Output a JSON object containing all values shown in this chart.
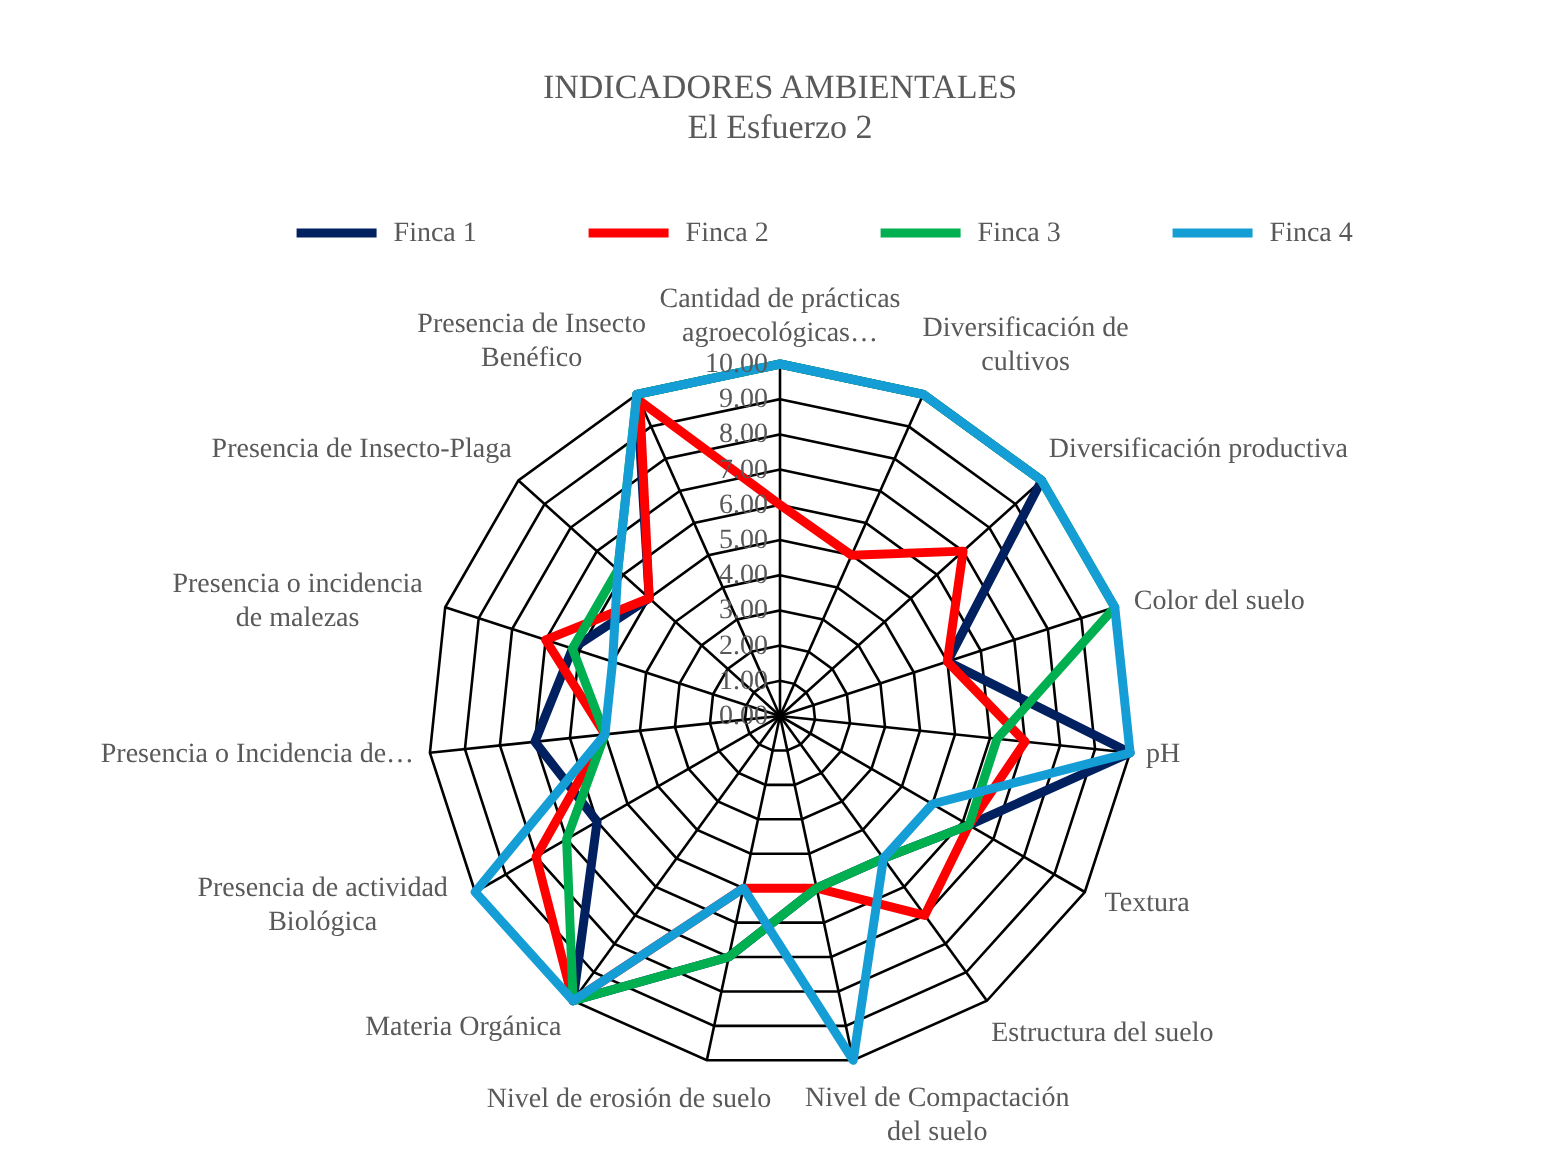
{
  "chart_data": {
    "type": "radar",
    "title": "INDICADORES AMBIENTALES",
    "subtitle": "El Esfuerzo 2",
    "categories": [
      "Cantidad de prácticas agroecológicas…",
      "Diversificación de cultivos",
      "Diversificación productiva",
      "Color del suelo",
      "pH",
      "Textura",
      "Estructura del suelo",
      "Nivel de Compactación del suelo",
      "Nivel de erosión de suelo",
      "Materia Orgánica",
      "Presencia de actividad Biológica",
      "Presencia o Incidencia de…",
      "Presencia o incidencia de malezas",
      "Presencia de Insecto-Plaga",
      "Presencia de Insecto Benéfico"
    ],
    "series": [
      {
        "name": "Finca 1",
        "color": "#002060",
        "values": [
          10,
          10,
          10,
          5,
          10,
          6.2,
          5,
          5,
          7,
          10,
          6,
          7,
          6.2,
          5,
          10
        ]
      },
      {
        "name": "Finca 2",
        "color": "#ff0000",
        "values": [
          6,
          5,
          7,
          5,
          7,
          6.2,
          7,
          5,
          5,
          10,
          8,
          5,
          7,
          5,
          9.8
        ]
      },
      {
        "name": "Finca 3",
        "color": "#00b050",
        "values": [
          10,
          10,
          10,
          10,
          6.2,
          6.2,
          5,
          5,
          7,
          10,
          7,
          5,
          6.2,
          6.2,
          10
        ]
      },
      {
        "name": "Finca 4",
        "color": "#159ed6",
        "values": [
          10,
          10,
          10,
          10,
          10,
          5,
          5,
          10,
          5,
          10,
          10,
          5,
          5,
          6.2,
          10
        ]
      }
    ],
    "ylim": [
      0,
      10
    ],
    "yticks": [
      {
        "value": 0,
        "label": "0.00"
      },
      {
        "value": 1,
        "label": "1.00"
      },
      {
        "value": 2,
        "label": "2.00"
      },
      {
        "value": 3,
        "label": "3.00"
      },
      {
        "value": 4,
        "label": "4.00"
      },
      {
        "value": 5,
        "label": "5.00"
      },
      {
        "value": 6,
        "label": "6.00"
      },
      {
        "value": 7,
        "label": "7.00"
      },
      {
        "value": 8,
        "label": "8.00"
      },
      {
        "value": 9,
        "label": "9.00"
      },
      {
        "value": 10,
        "label": "10.00"
      }
    ],
    "grid": true,
    "legend": "top"
  }
}
